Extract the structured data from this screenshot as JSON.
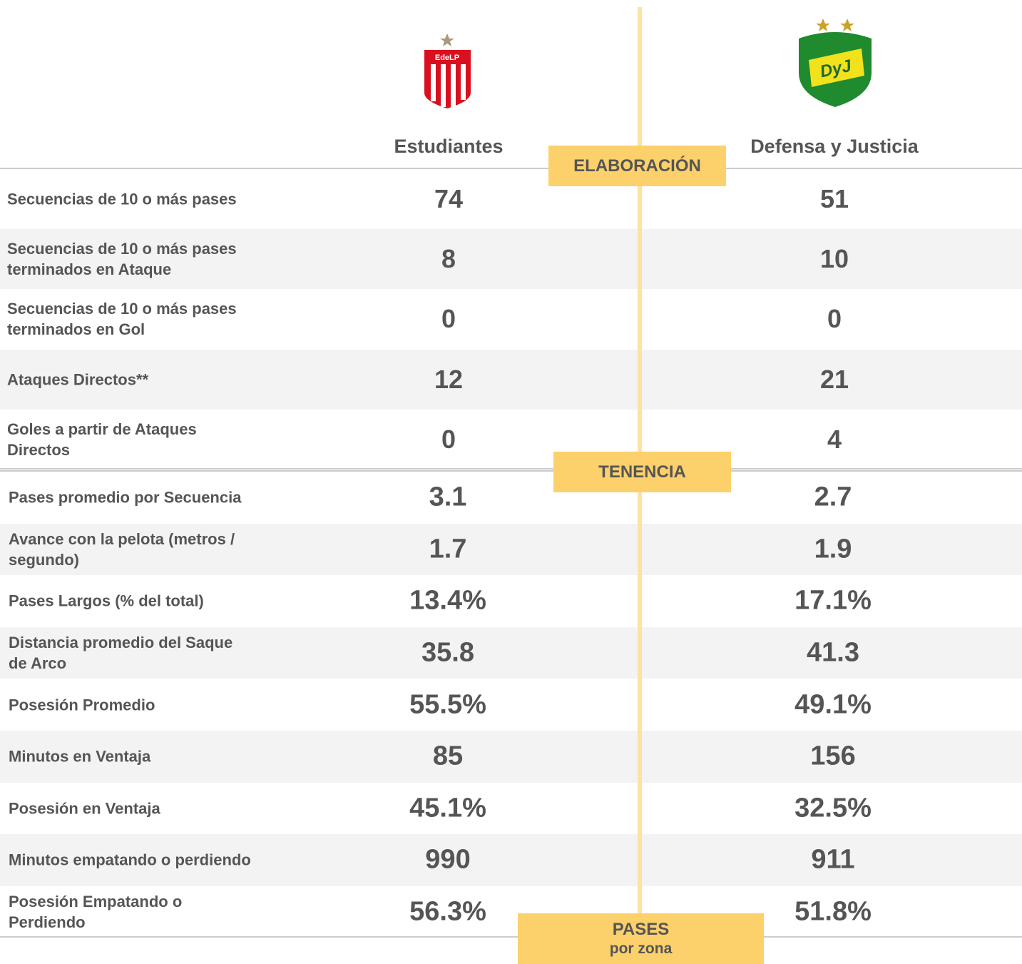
{
  "teams": [
    {
      "name": "Estudiantes",
      "logo": "EdeLP"
    },
    {
      "name": "Defensa y Justicia",
      "logo": "DyJ"
    }
  ],
  "sections": [
    {
      "title": "ELABORACIÓN",
      "rows": [
        {
          "label": "Secuencias de 10 o más pases",
          "values": [
            "74",
            "51"
          ]
        },
        {
          "label": "Secuencias de 10 o más pases terminados en Ataque",
          "values": [
            "8",
            "10"
          ]
        },
        {
          "label": "Secuencias de 10 o más pases terminados en Gol",
          "values": [
            "0",
            "0"
          ]
        },
        {
          "label": "Ataques Directos**",
          "values": [
            "12",
            "21"
          ]
        },
        {
          "label": "Goles a partir de Ataques Directos",
          "values": [
            "0",
            "4"
          ]
        }
      ]
    },
    {
      "title": "TENENCIA",
      "rows": [
        {
          "label": "Pases promedio por Secuencia",
          "values": [
            "3.1",
            "2.7"
          ]
        },
        {
          "label": "Avance con la pelota (metros / segundo)",
          "values": [
            "1.7",
            "1.9"
          ]
        },
        {
          "label": "Pases Largos (% del total)",
          "values": [
            "13.4%",
            "17.1%"
          ]
        },
        {
          "label": "Distancia promedio del Saque de Arco",
          "values": [
            "35.8",
            "41.3"
          ]
        },
        {
          "label": "Posesión Promedio",
          "values": [
            "55.5%",
            "49.1%"
          ]
        },
        {
          "label": "Minutos en Ventaja",
          "values": [
            "85",
            "156"
          ]
        },
        {
          "label": "Posesión en Ventaja",
          "values": [
            "45.1%",
            "32.5%"
          ]
        },
        {
          "label": "Minutos empatando o perdiendo",
          "values": [
            "990",
            "911"
          ]
        },
        {
          "label": "Posesión Empatando o Perdiendo",
          "values": [
            "56.3%",
            "51.8%"
          ]
        }
      ]
    },
    {
      "title": "PASES",
      "subtitle": "por zona",
      "rows": []
    }
  ]
}
